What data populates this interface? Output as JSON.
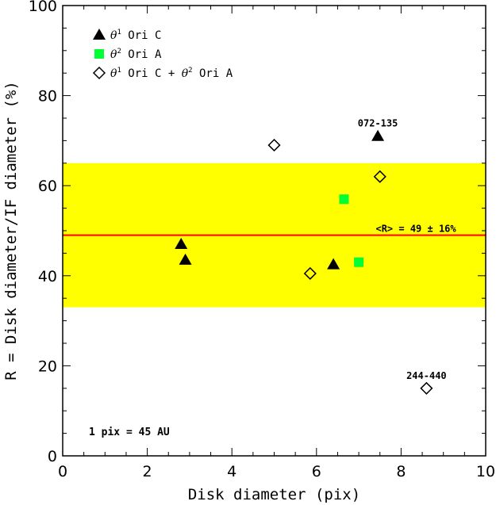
{
  "chart_data": {
    "type": "scatter",
    "xlabel": "Disk diameter (pix)",
    "ylabel": "R = Disk diameter/IF diameter (%)",
    "xlim": [
      0,
      10
    ],
    "ylim": [
      0,
      100
    ],
    "x_ticks": [
      0,
      2,
      4,
      6,
      8,
      10
    ],
    "y_ticks": [
      0,
      20,
      40,
      60,
      80,
      100
    ],
    "x_tick_labels": [
      "0",
      "2",
      "4",
      "6",
      "8",
      "10"
    ],
    "y_tick_labels": [
      "0",
      "20",
      "40",
      "60",
      "80",
      "100"
    ],
    "grid": false,
    "legend_position": "top-left",
    "series": [
      {
        "name": "θ¹ Ori C",
        "name_base": "θ",
        "name_sup": "1",
        "name_rest": " Ori C",
        "marker": "filled-triangle",
        "color": "#000000",
        "points": [
          {
            "x": 2.8,
            "y": 47
          },
          {
            "x": 2.9,
            "y": 43.5
          },
          {
            "x": 6.4,
            "y": 42.5
          },
          {
            "x": 7.45,
            "y": 71
          }
        ]
      },
      {
        "name": "θ² Ori A",
        "name_base": "θ",
        "name_sup": "2",
        "name_rest": " Ori A",
        "marker": "filled-square",
        "color": "#00ff33",
        "points": [
          {
            "x": 6.65,
            "y": 57
          },
          {
            "x": 7.0,
            "y": 43
          }
        ]
      },
      {
        "name": "θ¹ Ori C + θ² Ori A",
        "name_base": "θ",
        "name_sup": "1",
        "name_mid": " Ori C + ",
        "name_base2": "θ",
        "name_sup2": "2",
        "name_rest": " Ori A",
        "marker": "open-diamond",
        "color": "#000000",
        "points": [
          {
            "x": 5.0,
            "y": 69
          },
          {
            "x": 7.5,
            "y": 62
          },
          {
            "x": 5.85,
            "y": 40.5
          },
          {
            "x": 8.6,
            "y": 15
          }
        ]
      }
    ],
    "band": {
      "y_low": 33,
      "y_high": 65,
      "color": "#ffff00"
    },
    "mean_line": {
      "y": 49,
      "color": "#ff0000"
    },
    "annotations": [
      {
        "text": "072-135",
        "x": 7.45,
        "y": 71
      },
      {
        "text": "244-440",
        "x": 8.6,
        "y": 15
      },
      {
        "text": "<R> = 49 ± 16%",
        "x": 8.35,
        "y": 49
      }
    ],
    "note": "1 pix = 45 AU"
  }
}
